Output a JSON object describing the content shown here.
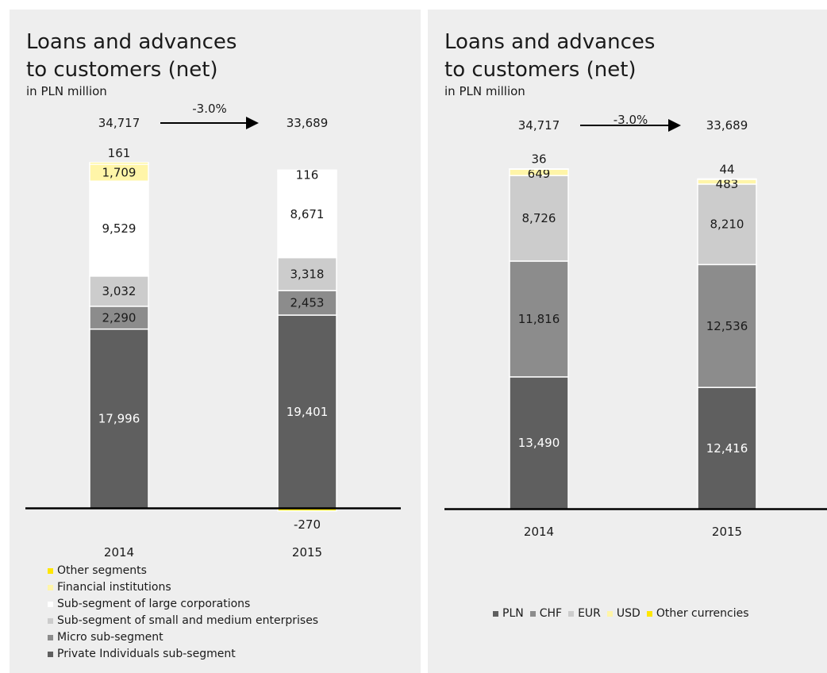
{
  "panels": [
    {
      "title": "Loans and advances\nto customers (net)",
      "subtitle": "in PLN million",
      "legend": [
        {
          "label": "Other segments",
          "color": "#ffe600"
        },
        {
          "label": "Financial institutions",
          "color": "#fff5a8"
        },
        {
          "label": "Sub-segment of large corporations",
          "color": "#ffffff"
        },
        {
          "label": "Sub-segment of small and medium enterprises",
          "color": "#cccccc"
        },
        {
          "label": "Micro sub-segment",
          "color": "#8c8c8c"
        },
        {
          "label": "Private Individuals sub-segment",
          "color": "#5f5f5f"
        }
      ]
    },
    {
      "title": "Loans and advances\nto customers (net)",
      "subtitle": "in PLN million",
      "legend": [
        {
          "label": "PLN",
          "color": "#5f5f5f"
        },
        {
          "label": "CHF",
          "color": "#8c8c8c"
        },
        {
          "label": "EUR",
          "color": "#cccccc"
        },
        {
          "label": "USD",
          "color": "#fff5a8"
        },
        {
          "label": "Other currencies",
          "color": "#ffe600"
        }
      ]
    }
  ],
  "chart_data": [
    {
      "type": "bar",
      "stacked": true,
      "title": "Loans and advances to customers (net)",
      "subtitle": "in PLN million",
      "categories": [
        "2014",
        "2015"
      ],
      "totals": [
        "34,717",
        "33,689"
      ],
      "change_label": "-3.0%",
      "series": [
        {
          "name": "Private Individuals sub-segment",
          "color": "#5f5f5f",
          "label_color": "#ffffff",
          "values": [
            17996,
            19401
          ],
          "labels": [
            "17,996",
            "19,401"
          ]
        },
        {
          "name": "Micro sub-segment",
          "color": "#8c8c8c",
          "label_color": "#1a1a1a",
          "values": [
            2290,
            2453
          ],
          "labels": [
            "2,290",
            "2,453"
          ]
        },
        {
          "name": "Sub-segment of small and medium enterprises",
          "color": "#cccccc",
          "label_color": "#1a1a1a",
          "values": [
            3032,
            3318
          ],
          "labels": [
            "3,032",
            "3,318"
          ]
        },
        {
          "name": "Sub-segment of large corporations",
          "color": "#ffffff",
          "label_color": "#1a1a1a",
          "values": [
            9529,
            8671
          ],
          "labels": [
            "9,529",
            "8,671"
          ]
        },
        {
          "name": "Financial institutions",
          "color": "#fff5a8",
          "label_color": "#1a1a1a",
          "values": [
            1709,
            116
          ],
          "labels": [
            "1,709",
            "116"
          ]
        },
        {
          "name": "Other segments",
          "color": "#ffe600",
          "label_color": "#1a1a1a",
          "values": [
            161,
            -270
          ],
          "labels": [
            "161",
            "-270"
          ]
        }
      ]
    },
    {
      "type": "bar",
      "stacked": true,
      "title": "Loans and advances to customers (net)",
      "subtitle": "in PLN million",
      "categories": [
        "2014",
        "2015"
      ],
      "totals": [
        "34,717",
        "33,689"
      ],
      "change_label": "-3.0%",
      "series": [
        {
          "name": "PLN",
          "color": "#5f5f5f",
          "label_color": "#ffffff",
          "values": [
            13490,
            12416
          ],
          "labels": [
            "13,490",
            "12,416"
          ]
        },
        {
          "name": "CHF",
          "color": "#8c8c8c",
          "label_color": "#1a1a1a",
          "values": [
            11816,
            12536
          ],
          "labels": [
            "11,816",
            "12,536"
          ]
        },
        {
          "name": "EUR",
          "color": "#cccccc",
          "label_color": "#1a1a1a",
          "values": [
            8726,
            8210
          ],
          "labels": [
            "8,726",
            "8,210"
          ]
        },
        {
          "name": "USD",
          "color": "#fff5a8",
          "label_color": "#1a1a1a",
          "values": [
            649,
            483
          ],
          "labels": [
            "649",
            "483"
          ]
        },
        {
          "name": "Other currencies",
          "color": "#ffe600",
          "label_color": "#1a1a1a",
          "values": [
            36,
            44
          ],
          "labels": [
            "36",
            "44"
          ]
        }
      ]
    }
  ]
}
